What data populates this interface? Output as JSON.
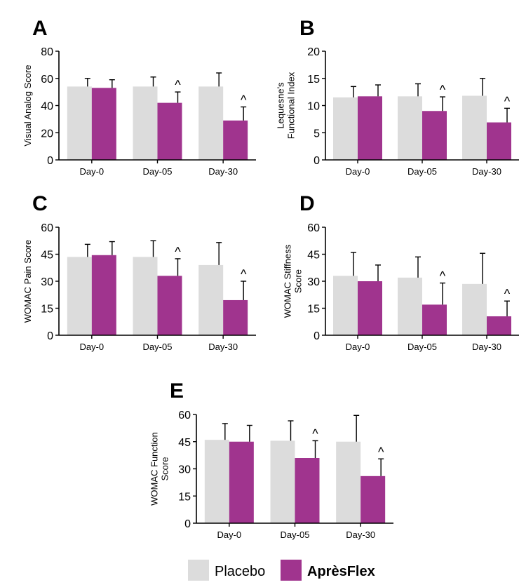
{
  "colors": {
    "placebo": "#dcdcdc",
    "apresflex": "#a0348e",
    "axis": "#000000"
  },
  "legend": {
    "placebo_label": "Placebo",
    "apresflex_label": "AprèsFlex"
  },
  "chart_data": [
    {
      "type": "bar",
      "panel": "A",
      "ylabel_lines": [
        "Visual Analog Score"
      ],
      "categories": [
        "Day-0",
        "Day-05",
        "Day-30"
      ],
      "ylim": [
        0,
        80
      ],
      "yticks": [
        "0",
        "20",
        "40",
        "60",
        "80"
      ],
      "series": [
        {
          "name": "Placebo",
          "values": [
            54,
            54,
            54
          ],
          "errors": [
            6,
            7,
            10
          ]
        },
        {
          "name": "AprèsFlex",
          "values": [
            53,
            42,
            29
          ],
          "errors": [
            6,
            8,
            10
          ]
        }
      ],
      "annotations": [
        "",
        "^",
        "^"
      ]
    },
    {
      "type": "bar",
      "panel": "B",
      "ylabel_lines": [
        "Lequesne's",
        "Functional Index"
      ],
      "categories": [
        "Day-0",
        "Day-05",
        "Day-30"
      ],
      "ylim": [
        0,
        20
      ],
      "yticks": [
        "0",
        "5",
        "10",
        "15",
        "20"
      ],
      "series": [
        {
          "name": "Placebo",
          "values": [
            11.5,
            11.7,
            11.8
          ],
          "errors": [
            2.0,
            2.3,
            3.2
          ]
        },
        {
          "name": "AprèsFlex",
          "values": [
            11.7,
            9.0,
            6.9
          ],
          "errors": [
            2.1,
            2.6,
            2.6
          ]
        }
      ],
      "annotations": [
        "",
        "^",
        "^"
      ]
    },
    {
      "type": "bar",
      "panel": "C",
      "ylabel_lines": [
        "WOMAC Pain Score"
      ],
      "categories": [
        "Day-0",
        "Day-05",
        "Day-30"
      ],
      "ylim": [
        0,
        60
      ],
      "yticks": [
        "0",
        "15",
        "30",
        "45",
        "60"
      ],
      "series": [
        {
          "name": "Placebo",
          "values": [
            43.5,
            43.5,
            39.0
          ],
          "errors": [
            7,
            9,
            12.5
          ]
        },
        {
          "name": "AprèsFlex",
          "values": [
            44.5,
            33.0,
            19.5
          ],
          "errors": [
            7.5,
            9.5,
            10.5
          ]
        }
      ],
      "annotations": [
        "",
        "^",
        "^"
      ]
    },
    {
      "type": "bar",
      "panel": "D",
      "ylabel_lines": [
        "WOMAC Stiffness",
        "Score"
      ],
      "categories": [
        "Day-0",
        "Day-05",
        "Day-30"
      ],
      "ylim": [
        0,
        60
      ],
      "yticks": [
        "0",
        "15",
        "30",
        "45",
        "60"
      ],
      "series": [
        {
          "name": "Placebo",
          "values": [
            33,
            32,
            28.5
          ],
          "errors": [
            13,
            11.5,
            17
          ]
        },
        {
          "name": "AprèsFlex",
          "values": [
            30,
            17,
            10.5
          ],
          "errors": [
            9,
            12,
            8.5
          ]
        }
      ],
      "annotations": [
        "",
        "^",
        "^"
      ]
    },
    {
      "type": "bar",
      "panel": "E",
      "ylabel_lines": [
        "WOMAC Function",
        "Score"
      ],
      "categories": [
        "Day-0",
        "Day-05",
        "Day-30"
      ],
      "ylim": [
        0,
        60
      ],
      "yticks": [
        "0",
        "15",
        "30",
        "45",
        "60"
      ],
      "series": [
        {
          "name": "Placebo",
          "values": [
            46,
            45.5,
            45
          ],
          "errors": [
            9,
            11,
            14.5
          ]
        },
        {
          "name": "AprèsFlex",
          "values": [
            45,
            36,
            26
          ],
          "errors": [
            9,
            9.5,
            9.5
          ]
        }
      ],
      "annotations": [
        "",
        "^",
        "^"
      ]
    }
  ]
}
